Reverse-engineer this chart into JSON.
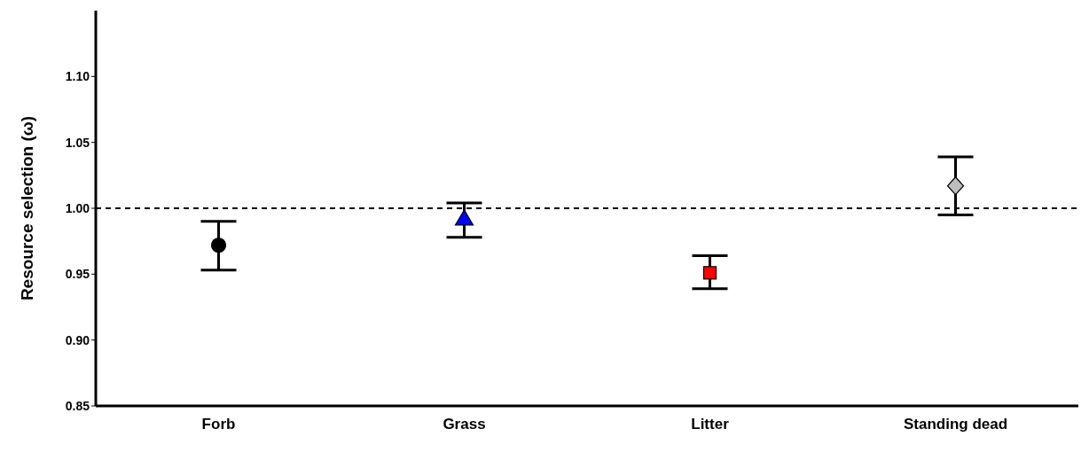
{
  "chart_data": {
    "type": "scatter",
    "ylabel": "Resource selection (ω)",
    "categories": [
      "Forb",
      "Grass",
      "Litter",
      "Standing dead"
    ],
    "series": [
      {
        "color": "#000000",
        "marker": "circle",
        "x": [
          "Forb"
        ],
        "values": [
          0.972
        ],
        "errors": [
          [
            0.953,
            0.99
          ]
        ]
      },
      {
        "color": "#0000ff",
        "marker": "triangle",
        "x": [
          "Grass"
        ],
        "values": [
          0.992
        ],
        "errors": [
          [
            0.978,
            1.004
          ]
        ]
      },
      {
        "color": "#ff0000",
        "marker": "square",
        "x": [
          "Litter"
        ],
        "values": [
          0.951
        ],
        "errors": [
          [
            0.939,
            0.964
          ]
        ]
      },
      {
        "color": "#bebebe",
        "marker": "diamond",
        "x": [
          "Standing dead"
        ],
        "values": [
          1.017
        ],
        "errors": [
          [
            0.995,
            1.039
          ]
        ]
      }
    ],
    "ylim": [
      0.85,
      1.15
    ],
    "yticks": [
      {
        "value": 0.85,
        "label": "0.85"
      },
      {
        "value": 0.9,
        "label": "0.90"
      },
      {
        "value": 0.95,
        "label": "0.95"
      },
      {
        "value": 1,
        "label": "1.00"
      },
      {
        "value": 1.05,
        "label": "1.05"
      },
      {
        "value": 1.1,
        "label": "1.10"
      }
    ],
    "ref_lines": [
      {
        "axis": "y",
        "value": 1,
        "line_style": "dashed",
        "color": "#000000"
      }
    ],
    "grid": false,
    "legend": false
  }
}
